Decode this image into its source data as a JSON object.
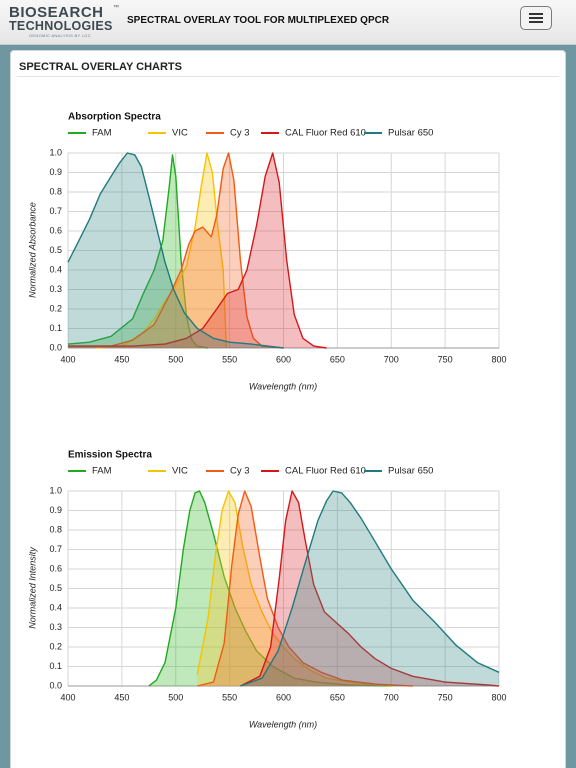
{
  "header": {
    "logo_main": "BIOSEARCH",
    "logo_sub": "TECHNOLOGIES",
    "logo_tag": "GENOMIC ANALYSIS BY LGC",
    "logo_tm": "™",
    "title": "SPECTRAL OVERLAY TOOL FOR MULTIPLEXED QPCR"
  },
  "panel": {
    "title": "SPECTRAL OVERLAY CHARTS"
  },
  "chart_data": [
    {
      "type": "area",
      "title": "Absorption Spectra",
      "xlabel": "Wavelength (nm)",
      "ylabel": "Normalized Absorbance",
      "xlim": [
        400,
        800
      ],
      "ylim": [
        0,
        1.0
      ],
      "xticks": [
        400,
        450,
        500,
        550,
        600,
        650,
        700,
        750,
        800
      ],
      "yticks": [
        0,
        0.1,
        0.2,
        0.3,
        0.4,
        0.5,
        0.6,
        0.7,
        0.8,
        0.9,
        1.0
      ],
      "ytick_labels": [
        "0.0",
        "0.1",
        "0.2",
        "0.3",
        "0.4",
        "0.5",
        "0.6",
        "0.7",
        "0.8",
        "0.9",
        "1.0"
      ],
      "grid": true,
      "legend_position": "top-left",
      "series": [
        {
          "name": "FAM",
          "color": "#1faa1f",
          "fill": "rgba(60,185,50,0.33)",
          "points": [
            [
              400,
              0.02
            ],
            [
              420,
              0.03
            ],
            [
              440,
              0.06
            ],
            [
              460,
              0.15
            ],
            [
              470,
              0.28
            ],
            [
              480,
              0.4
            ],
            [
              488,
              0.55
            ],
            [
              494,
              0.83
            ],
            [
              497,
              0.99
            ],
            [
              500,
              0.88
            ],
            [
              505,
              0.45
            ],
            [
              510,
              0.16
            ],
            [
              515,
              0.04
            ],
            [
              520,
              0.01
            ],
            [
              530,
              0.0
            ]
          ]
        },
        {
          "name": "VIC",
          "color": "#f5c400",
          "fill": "rgba(250,200,40,0.35)",
          "points": [
            [
              425,
              0.0
            ],
            [
              450,
              0.01
            ],
            [
              470,
              0.08
            ],
            [
              480,
              0.15
            ],
            [
              490,
              0.24
            ],
            [
              500,
              0.32
            ],
            [
              510,
              0.42
            ],
            [
              518,
              0.62
            ],
            [
              524,
              0.84
            ],
            [
              529,
              1.0
            ],
            [
              534,
              0.9
            ],
            [
              539,
              0.62
            ],
            [
              544,
              0.4
            ],
            [
              547,
              0.0
            ]
          ]
        },
        {
          "name": "Cy 3",
          "color": "#f35a12",
          "fill": "rgba(245,110,50,0.33)",
          "points": [
            [
              400,
              0.01
            ],
            [
              440,
              0.01
            ],
            [
              460,
              0.04
            ],
            [
              480,
              0.12
            ],
            [
              495,
              0.28
            ],
            [
              505,
              0.4
            ],
            [
              512,
              0.53
            ],
            [
              518,
              0.6
            ],
            [
              525,
              0.62
            ],
            [
              533,
              0.57
            ],
            [
              538,
              0.68
            ],
            [
              544,
              0.92
            ],
            [
              549,
              1.0
            ],
            [
              554,
              0.86
            ],
            [
              560,
              0.45
            ],
            [
              566,
              0.16
            ],
            [
              572,
              0.05
            ],
            [
              580,
              0.01
            ],
            [
              600,
              0.0
            ]
          ]
        },
        {
          "name": "CAL Fluor Red 610",
          "color": "#d41818",
          "fill": "rgba(220,40,50,0.30)",
          "points": [
            [
              400,
              0.01
            ],
            [
              460,
              0.01
            ],
            [
              490,
              0.02
            ],
            [
              510,
              0.05
            ],
            [
              525,
              0.1
            ],
            [
              538,
              0.2
            ],
            [
              548,
              0.28
            ],
            [
              558,
              0.3
            ],
            [
              566,
              0.4
            ],
            [
              575,
              0.63
            ],
            [
              583,
              0.88
            ],
            [
              590,
              1.0
            ],
            [
              596,
              0.85
            ],
            [
              603,
              0.45
            ],
            [
              610,
              0.17
            ],
            [
              618,
              0.05
            ],
            [
              628,
              0.01
            ],
            [
              640,
              0.0
            ]
          ]
        },
        {
          "name": "Pulsar 650",
          "color": "#1f7b7d",
          "fill": "rgba(60,140,140,0.32)",
          "points": [
            [
              400,
              0.44
            ],
            [
              410,
              0.55
            ],
            [
              420,
              0.66
            ],
            [
              430,
              0.79
            ],
            [
              440,
              0.88
            ],
            [
              448,
              0.95
            ],
            [
              455,
              1.0
            ],
            [
              462,
              0.99
            ],
            [
              468,
              0.93
            ],
            [
              475,
              0.78
            ],
            [
              482,
              0.62
            ],
            [
              490,
              0.44
            ],
            [
              498,
              0.3
            ],
            [
              508,
              0.18
            ],
            [
              520,
              0.1
            ],
            [
              535,
              0.05
            ],
            [
              550,
              0.03
            ],
            [
              570,
              0.02
            ],
            [
              600,
              0.0
            ]
          ]
        }
      ]
    },
    {
      "type": "area",
      "title": "Emission Spectra",
      "xlabel": "Wavelength (nm)",
      "ylabel": "Normalized Intensity",
      "xlim": [
        400,
        800
      ],
      "ylim": [
        0,
        1.0
      ],
      "xticks": [
        400,
        450,
        500,
        550,
        600,
        650,
        700,
        750,
        800
      ],
      "yticks": [
        0,
        0.1,
        0.2,
        0.3,
        0.4,
        0.5,
        0.6,
        0.7,
        0.8,
        0.9,
        1.0
      ],
      "ytick_labels": [
        "0.0",
        "0.1",
        "0.2",
        "0.3",
        "0.4",
        "0.5",
        "0.6",
        "0.7",
        "0.8",
        "0.9",
        "1.0"
      ],
      "grid": true,
      "legend_position": "top-left",
      "series": [
        {
          "name": "FAM",
          "color": "#1faa1f",
          "fill": "rgba(60,185,50,0.33)",
          "points": [
            [
              475,
              0.0
            ],
            [
              482,
              0.03
            ],
            [
              490,
              0.12
            ],
            [
              500,
              0.4
            ],
            [
              507,
              0.7
            ],
            [
              513,
              0.9
            ],
            [
              518,
              0.99
            ],
            [
              522,
              1.0
            ],
            [
              527,
              0.94
            ],
            [
              535,
              0.78
            ],
            [
              545,
              0.56
            ],
            [
              555,
              0.4
            ],
            [
              565,
              0.28
            ],
            [
              575,
              0.18
            ],
            [
              590,
              0.1
            ],
            [
              610,
              0.04
            ],
            [
              630,
              0.02
            ],
            [
              660,
              0.005
            ],
            [
              700,
              0.0
            ]
          ]
        },
        {
          "name": "VIC",
          "color": "#f5c400",
          "fill": "rgba(250,200,40,0.35)",
          "points": [
            [
              520,
              0.06
            ],
            [
              530,
              0.35
            ],
            [
              537,
              0.68
            ],
            [
              543,
              0.9
            ],
            [
              549,
              1.0
            ],
            [
              555,
              0.94
            ],
            [
              562,
              0.72
            ],
            [
              570,
              0.52
            ],
            [
              580,
              0.38
            ],
            [
              590,
              0.27
            ],
            [
              600,
              0.2
            ],
            [
              610,
              0.14
            ],
            [
              625,
              0.08
            ],
            [
              640,
              0.04
            ],
            [
              660,
              0.02
            ],
            [
              700,
              0.0
            ]
          ]
        },
        {
          "name": "Cy 3",
          "color": "#f35a12",
          "fill": "rgba(245,110,50,0.33)",
          "points": [
            [
              520,
              0.0
            ],
            [
              535,
              0.02
            ],
            [
              545,
              0.22
            ],
            [
              552,
              0.62
            ],
            [
              558,
              0.88
            ],
            [
              564,
              1.0
            ],
            [
              570,
              0.92
            ],
            [
              578,
              0.66
            ],
            [
              585,
              0.45
            ],
            [
              595,
              0.3
            ],
            [
              605,
              0.2
            ],
            [
              618,
              0.12
            ],
            [
              635,
              0.07
            ],
            [
              655,
              0.03
            ],
            [
              685,
              0.01
            ],
            [
              720,
              0.0
            ]
          ]
        },
        {
          "name": "CAL Fluor Red 610",
          "color": "#d41818",
          "fill": "rgba(220,40,50,0.30)",
          "points": [
            [
              560,
              0.0
            ],
            [
              578,
              0.05
            ],
            [
              588,
              0.2
            ],
            [
              596,
              0.55
            ],
            [
              602,
              0.85
            ],
            [
              608,
              1.0
            ],
            [
              614,
              0.94
            ],
            [
              620,
              0.75
            ],
            [
              628,
              0.52
            ],
            [
              638,
              0.38
            ],
            [
              650,
              0.32
            ],
            [
              660,
              0.27
            ],
            [
              672,
              0.2
            ],
            [
              685,
              0.14
            ],
            [
              700,
              0.09
            ],
            [
              720,
              0.05
            ],
            [
              750,
              0.02
            ],
            [
              790,
              0.005
            ],
            [
              800,
              0.0
            ]
          ]
        },
        {
          "name": "Pulsar 650",
          "color": "#1f7b7d",
          "fill": "rgba(60,140,140,0.32)",
          "points": [
            [
              560,
              0.0
            ],
            [
              580,
              0.04
            ],
            [
              595,
              0.18
            ],
            [
              608,
              0.4
            ],
            [
              620,
              0.63
            ],
            [
              632,
              0.85
            ],
            [
              640,
              0.95
            ],
            [
              646,
              1.0
            ],
            [
              654,
              0.99
            ],
            [
              662,
              0.94
            ],
            [
              672,
              0.86
            ],
            [
              685,
              0.74
            ],
            [
              700,
              0.6
            ],
            [
              720,
              0.44
            ],
            [
              740,
              0.33
            ],
            [
              760,
              0.21
            ],
            [
              780,
              0.12
            ],
            [
              800,
              0.07
            ]
          ]
        }
      ]
    }
  ]
}
